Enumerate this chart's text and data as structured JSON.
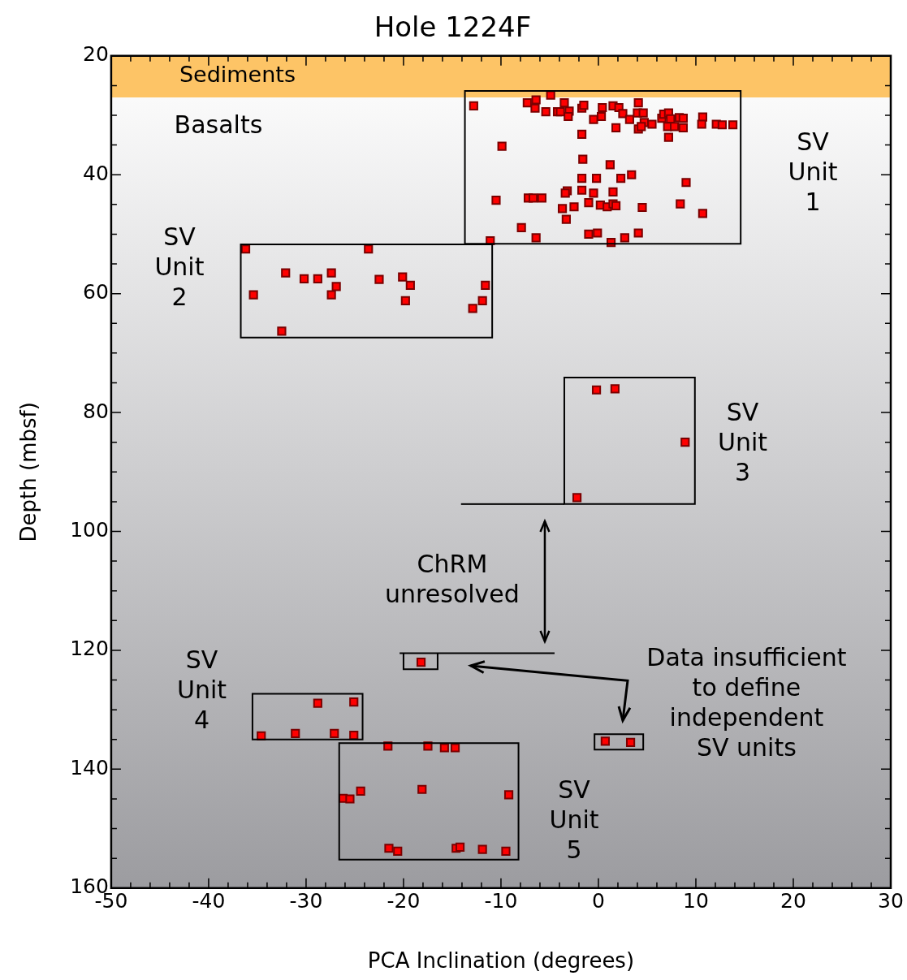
{
  "chart_data": {
    "type": "scatter",
    "title": "Hole 1224F",
    "xlabel": "PCA Inclination (degrees)",
    "ylabel": "Depth (mbsf)",
    "series": [
      {
        "color": "#ff0000",
        "x": [
          -12.8,
          -7.3,
          -6.4,
          -6.5,
          -4.9,
          -5.4,
          -4.2,
          -3.9,
          -3.5,
          -3.0,
          -3.1,
          -1.7,
          -1.5,
          -0.5,
          0.4,
          0.3,
          1.5,
          2.1,
          2.5,
          3.2,
          1.8,
          4.1,
          4.0,
          4.6,
          4.7,
          4.1,
          4.4,
          5.5,
          6.5,
          6.7,
          7.2,
          7.4,
          7.1,
          7.8,
          8.3,
          8.7,
          8.7,
          7.2,
          10.7,
          10.6,
          12.1,
          12.7,
          13.8,
          -1.7,
          -9.9,
          -1.6,
          1.2,
          3.4,
          2.3,
          -0.2,
          -1.7,
          9.0,
          -3.2,
          -3.4,
          -1.7,
          -0.5,
          1.5,
          -1.0,
          -2.5,
          -3.7,
          0.2,
          0.9,
          1.5,
          1.8,
          4.5,
          8.4,
          10.7,
          -10.5,
          -7.2,
          -6.7,
          -5.8,
          -3.3,
          -7.9,
          -6.4,
          -11.1,
          -1.0,
          -0.1,
          1.3,
          2.7,
          4.1,
          -36.2,
          -23.6,
          -32.1,
          -30.2,
          -28.8,
          -27.4,
          -26.9,
          -27.4,
          -35.4,
          -22.5,
          -20.1,
          -19.3,
          -19.8,
          -11.6,
          -11.9,
          -12.9,
          -32.5,
          -0.2,
          1.7,
          8.9,
          -2.2,
          -18.2,
          -28.8,
          -25.1,
          -34.6,
          -31.1,
          -27.1,
          -25.1,
          0.7,
          3.3,
          -21.6,
          -17.5,
          -15.8,
          -14.7,
          -26.2,
          -25.5,
          -24.4,
          -18.1,
          -9.2,
          -21.5,
          -20.6,
          -14.6,
          -14.2,
          -11.9,
          -9.5
        ],
        "values": [
          28.4,
          27.9,
          27.4,
          28.8,
          26.6,
          29.4,
          29.4,
          29.4,
          27.9,
          29.3,
          30.2,
          28.8,
          28.3,
          30.7,
          28.7,
          30.2,
          28.4,
          28.7,
          29.7,
          30.7,
          32.1,
          27.9,
          29.6,
          29.6,
          31.2,
          32.3,
          31.9,
          31.5,
          30.5,
          29.8,
          29.6,
          30.6,
          31.9,
          31.9,
          30.4,
          30.5,
          32.1,
          33.7,
          30.3,
          31.5,
          31.5,
          31.6,
          31.6,
          33.2,
          35.2,
          37.4,
          38.3,
          40.0,
          40.6,
          40.6,
          40.6,
          41.3,
          42.7,
          43.1,
          42.6,
          43.1,
          42.9,
          44.7,
          45.4,
          45.7,
          45.1,
          45.4,
          44.9,
          45.2,
          45.5,
          44.9,
          46.5,
          44.3,
          43.9,
          43.9,
          43.9,
          47.5,
          48.9,
          50.6,
          51.1,
          50.0,
          49.8,
          51.4,
          50.6,
          49.8,
          52.5,
          52.5,
          56.5,
          57.5,
          57.5,
          56.5,
          58.8,
          60.2,
          60.2,
          57.6,
          57.2,
          58.6,
          61.2,
          58.6,
          61.2,
          62.5,
          66.3,
          76.2,
          76.0,
          85.0,
          94.3,
          122.0,
          128.9,
          128.7,
          134.4,
          134.0,
          134.0,
          134.3,
          135.3,
          135.5,
          136.1,
          136.1,
          136.4,
          136.4,
          144.9,
          145.0,
          143.7,
          143.4,
          144.3,
          153.3,
          153.8,
          153.3,
          153.1,
          153.5,
          153.8
        ]
      }
    ],
    "marker": "square",
    "legend": false,
    "xlim": [
      -50,
      30
    ],
    "xticks": [
      -50,
      {
        "value": -48,
        "label": null
      },
      {
        "value": -46,
        "label": null
      },
      {
        "value": -44,
        "label": null
      },
      {
        "value": -42,
        "label": null
      },
      -40,
      {
        "value": -38,
        "label": null
      },
      {
        "value": -36,
        "label": null
      },
      {
        "value": -34,
        "label": null
      },
      {
        "value": -32,
        "label": null
      },
      -30,
      {
        "value": -28,
        "label": null
      },
      {
        "value": -26,
        "label": null
      },
      {
        "value": -24,
        "label": null
      },
      {
        "value": -22,
        "label": null
      },
      -20,
      {
        "value": -18,
        "label": null
      },
      {
        "value": -16,
        "label": null
      },
      {
        "value": -14,
        "label": null
      },
      {
        "value": -12,
        "label": null
      },
      -10,
      {
        "value": -8,
        "label": null
      },
      {
        "value": -6,
        "label": null
      },
      {
        "value": -4,
        "label": null
      },
      {
        "value": -2,
        "label": null
      },
      0,
      {
        "value": 2,
        "label": null
      },
      {
        "value": 4,
        "label": null
      },
      {
        "value": 6,
        "label": null
      },
      {
        "value": 8,
        "label": null
      },
      10,
      {
        "value": 12,
        "label": null
      },
      {
        "value": 14,
        "label": null
      },
      {
        "value": 16,
        "label": null
      },
      {
        "value": 18,
        "label": null
      },
      20,
      {
        "value": 22,
        "label": null
      },
      {
        "value": 24,
        "label": null
      },
      {
        "value": 26,
        "label": null
      },
      {
        "value": 28,
        "label": null
      },
      30
    ],
    "ylim": [
      160,
      20
    ],
    "yticks": [
      20,
      {
        "value": 25,
        "label": null
      },
      {
        "value": 30,
        "label": null
      },
      {
        "value": 35,
        "label": null
      },
      40,
      {
        "value": 45,
        "label": null
      },
      {
        "value": 50,
        "label": null
      },
      {
        "value": 55,
        "label": null
      },
      60,
      {
        "value": 65,
        "label": null
      },
      {
        "value": 70,
        "label": null
      },
      {
        "value": 75,
        "label": null
      },
      80,
      {
        "value": 85,
        "label": null
      },
      {
        "value": 90,
        "label": null
      },
      {
        "value": 95,
        "label": null
      },
      100,
      {
        "value": 105,
        "label": null
      },
      {
        "value": 110,
        "label": null
      },
      {
        "value": 115,
        "label": null
      },
      120,
      {
        "value": 125,
        "label": null
      },
      {
        "value": 130,
        "label": null
      },
      {
        "value": 135,
        "label": null
      },
      140,
      {
        "value": 145,
        "label": null
      },
      {
        "value": 150,
        "label": null
      },
      {
        "value": 155,
        "label": null
      },
      160
    ],
    "bands": [
      {
        "axis": "y",
        "from": 20,
        "to": 27,
        "label": "Sediments",
        "color": "#fdc466"
      }
    ],
    "annotations": [
      "Basalts",
      "SV\nUnit\n1",
      "SV\nUnit\n2",
      "SV\nUnit\n3",
      "SV\nUnit\n4",
      "SV\nUnit\n5",
      "ChRM\nunresolved",
      "Data insufficient\nto define\nindependent\nSV units"
    ]
  }
}
